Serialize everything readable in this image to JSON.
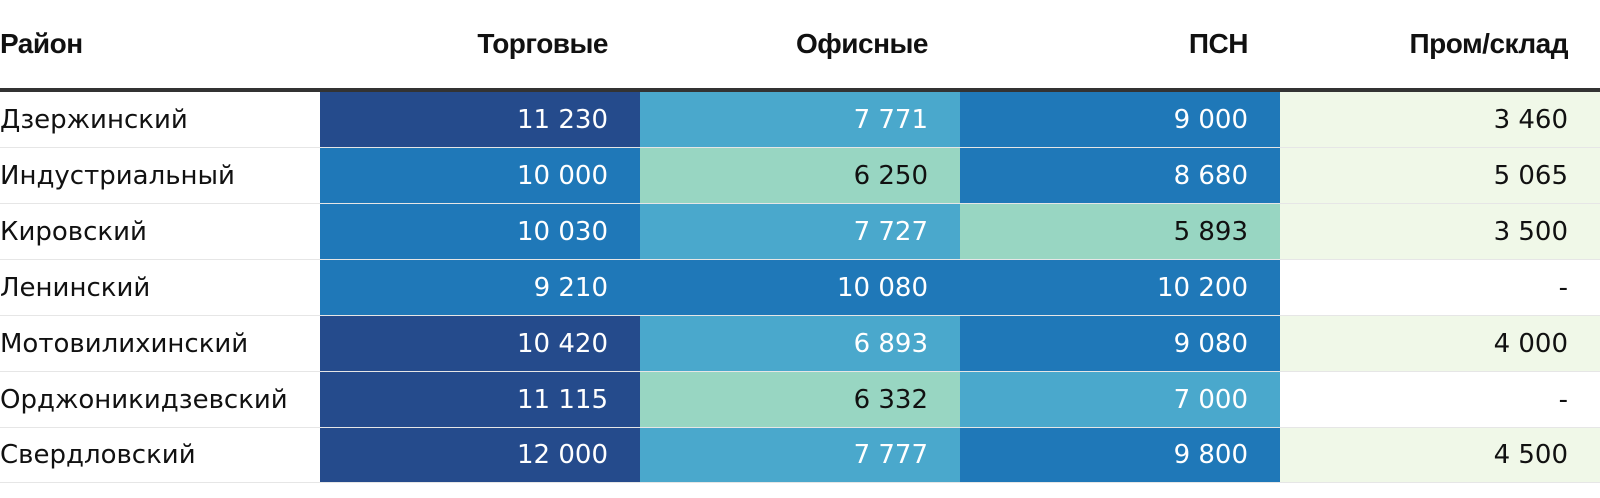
{
  "chart_data": {
    "type": "table",
    "columns": [
      "Район",
      "Торговые",
      "Офисные",
      "ПСН",
      "Пром/склад"
    ],
    "rows": [
      {
        "district": "Дзержинский",
        "values": [
          "11 230",
          "7 771",
          "9 000",
          "3 460"
        ]
      },
      {
        "district": "Индустриальный",
        "values": [
          "10 000",
          "6 250",
          "8 680",
          "5 065"
        ]
      },
      {
        "district": "Кировский",
        "values": [
          "10 030",
          "7 727",
          "5 893",
          "3 500"
        ]
      },
      {
        "district": "Ленинский",
        "values": [
          "9 210",
          "10 080",
          "10 200",
          "-"
        ]
      },
      {
        "district": "Мотовилихинский",
        "values": [
          "10 420",
          "6 893",
          "9 080",
          "4 000"
        ]
      },
      {
        "district": "Орджоникидзевский",
        "values": [
          "11 115",
          "6 332",
          "7 000",
          "-"
        ]
      },
      {
        "district": "Свердловский",
        "values": [
          "12 000",
          "7 777",
          "9 800",
          "4 500"
        ]
      }
    ]
  },
  "colors": {
    "level_1_darkest": "#254b8c",
    "level_2_dark": "#1f78b8",
    "level_3_mid": "#4aa8cc",
    "level_4_light": "#98d6c2",
    "level_5_palest": "#f0f8e8",
    "text_light": "#ffffff",
    "text_dark": "#111111"
  }
}
